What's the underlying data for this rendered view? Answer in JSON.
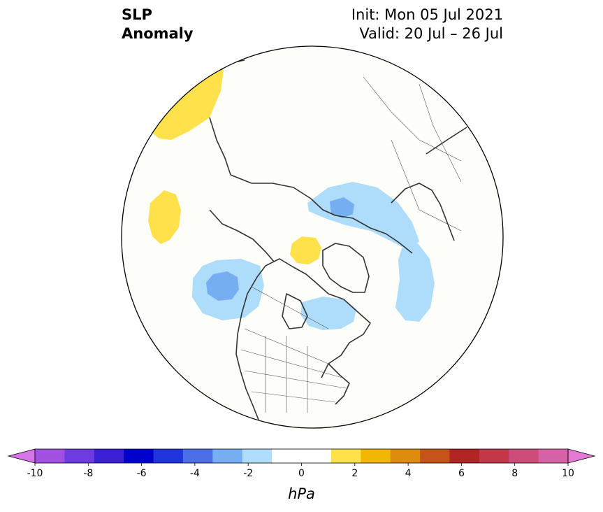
{
  "title": {
    "left_line1": "SLP",
    "left_line2": "Anomaly",
    "init": "Init: Mon 05 Jul 2021",
    "valid": "Valid: 20 Jul – 26 Jul"
  },
  "colorbar": {
    "unit": "hPa",
    "min": -10,
    "max": 10,
    "ticks": [
      "-10",
      "-8",
      "-6",
      "-4",
      "-2",
      "0",
      "2",
      "4",
      "6",
      "8",
      "10"
    ],
    "colors": [
      "#d675e6",
      "#a150e0",
      "#6e3be0",
      "#3b20d4",
      "#0000cd",
      "#2036dc",
      "#4c6fe8",
      "#76aef2",
      "#aedcfb",
      "#ffffff",
      "#ffffff",
      "#ffe14c",
      "#f2b705",
      "#de8c0e",
      "#c6541a",
      "#b02424",
      "#c23849",
      "#cd4c7a",
      "#d862a8",
      "#e679d4"
    ]
  },
  "map": {
    "projection": "north-polar-stereographic",
    "land_color": "#fdfdfa",
    "coast_color": "#333333"
  }
}
